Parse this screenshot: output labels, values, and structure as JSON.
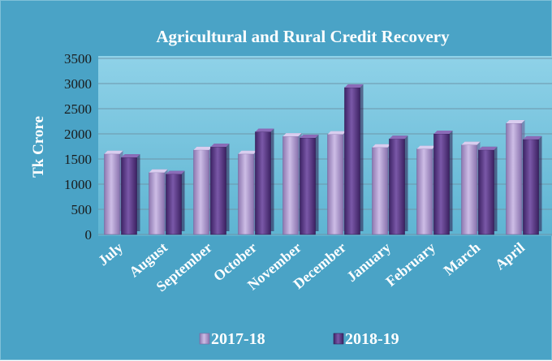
{
  "chart_data": {
    "type": "bar",
    "title": "Agricultural and Rural Credit Recovery",
    "xlabel": "",
    "ylabel": "Tk Crore",
    "ylim": [
      0,
      3500
    ],
    "yticks": [
      0,
      500,
      1000,
      1500,
      2000,
      2500,
      3000,
      3500
    ],
    "grid": true,
    "legend_position": "bottom",
    "categories": [
      "July",
      "August",
      "September",
      "October",
      "November",
      "December",
      "January",
      "February",
      "March",
      "April"
    ],
    "series": [
      {
        "name": "2017-18",
        "color": "#a48fc4",
        "values": [
          1600,
          1230,
          1680,
          1600,
          1950,
          1990,
          1730,
          1700,
          1780,
          2210
        ]
      },
      {
        "name": "2018-19",
        "color": "#5a3a86",
        "values": [
          1530,
          1200,
          1740,
          2040,
          1920,
          2920,
          1900,
          2000,
          1680,
          1890
        ]
      }
    ]
  }
}
